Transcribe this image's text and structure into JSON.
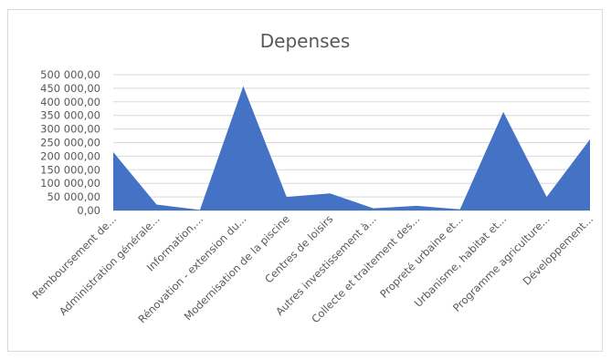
{
  "chart_data": {
    "type": "area",
    "title": "Depenses",
    "xlabel": "",
    "ylabel": "",
    "ylim": [
      0,
      500000
    ],
    "yticks": [
      "0,00",
      "50 000,00",
      "100 000,00",
      "150 000,00",
      "200 000,00",
      "250 000,00",
      "300 000,00",
      "350 000,00",
      "400 000,00",
      "450 000,00",
      "500 000,00"
    ],
    "grid": true,
    "legend": "none",
    "color": "#4472c4",
    "categories": [
      "Remboursement de...",
      "Administration générale...",
      "Information,...",
      "Rénovation - extension du...",
      "Modernisation de la piscine",
      "Centres de loisirs",
      "Autres investissement à...",
      "Collecte et traitement des...",
      "Propreté urbaine et...",
      "Urbanisme, habitat et...",
      "Programme agriculture...",
      "Développement..."
    ],
    "values": [
      215000,
      22000,
      2000,
      458000,
      50000,
      63000,
      8000,
      17000,
      4000,
      363000,
      50000,
      262000
    ]
  }
}
